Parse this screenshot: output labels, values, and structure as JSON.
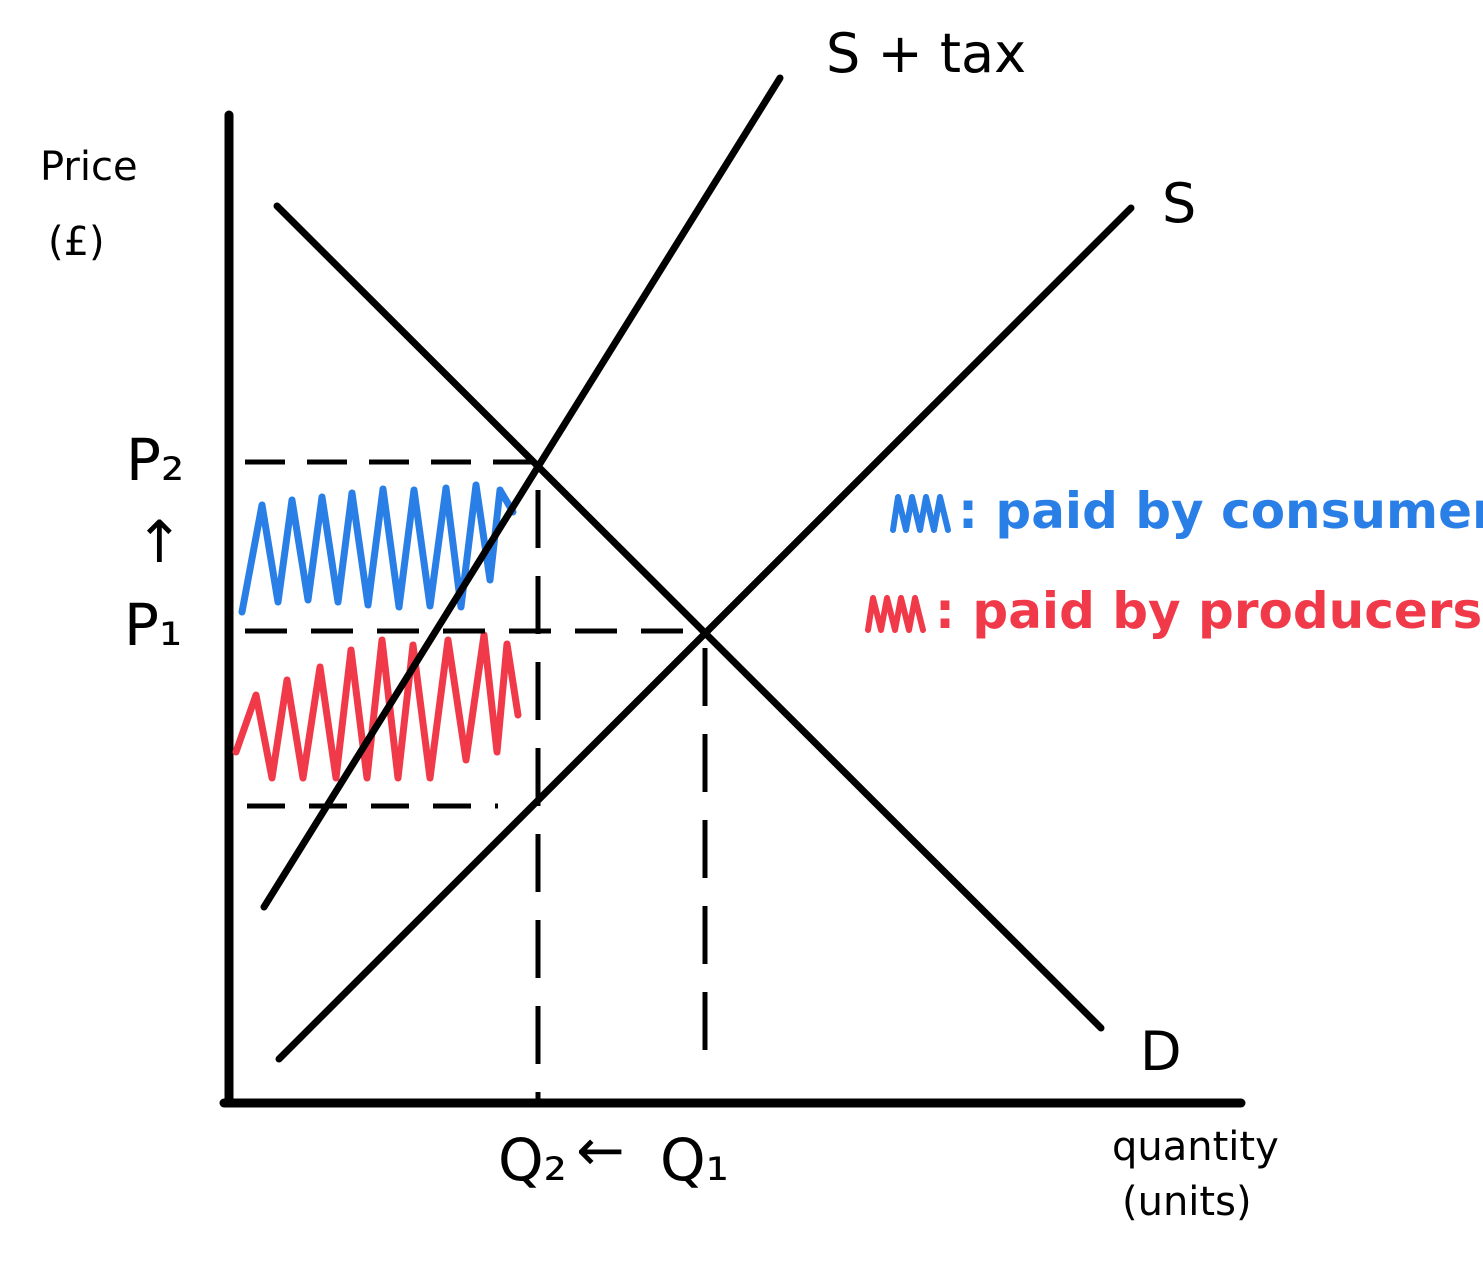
{
  "diagram": {
    "y_axis_label_line1": "Price",
    "y_axis_label_line2": "(£)",
    "x_axis_label_line1": "quantity",
    "x_axis_label_line2": "(units)",
    "curves": {
      "supply_plus_tax": "S + tax",
      "supply": "S",
      "demand": "D"
    },
    "price_ticks": {
      "p2": "P₂",
      "arrow": "↑",
      "p1": "P₁"
    },
    "quantity_ticks": {
      "q2": "Q₂",
      "arrow": "←",
      "q1": "Q₁"
    },
    "legend": [
      {
        "label": ": paid by consumers",
        "color": "#2a7fe6"
      },
      {
        "label": ": paid by producers",
        "color": "#f03a4a"
      }
    ]
  }
}
